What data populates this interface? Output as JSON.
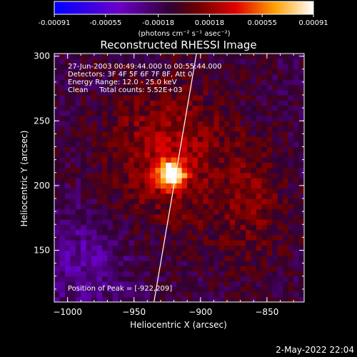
{
  "chart_data": {
    "type": "heatmap",
    "title": "Reconstructed RHESSI Image",
    "xlabel": "Heliocentric X (arcsec)",
    "ylabel": "Heliocentric Y (arcsec)",
    "xlim": [
      -1010,
      -822
    ],
    "ylim": [
      110,
      302
    ],
    "x_ticks": [
      -1000,
      -950,
      -900,
      -850
    ],
    "y_ticks": [
      150,
      200,
      250,
      300
    ],
    "x_tick_labels": [
      "−1000",
      "−950",
      "−900",
      "−850"
    ],
    "y_tick_labels": [
      "150",
      "200",
      "250",
      "300"
    ],
    "colorbar": {
      "range": [
        -0.00091,
        0.00091
      ],
      "ticks": [
        -0.00091,
        -0.00055,
        -0.00018,
        0.00018,
        0.00055,
        0.00091
      ],
      "tick_labels": [
        "-0.00091",
        "-0.00055",
        "-0.00018",
        "0.00018",
        "0.00055",
        "0.00091"
      ],
      "unit_label": "(photons cm⁻² s⁻¹ asec⁻²)"
    },
    "annotations": [
      "27-Jun-2003 00:49:44.000 to 00:55:44.000",
      "Detectors: 3F 4F 5F 6F 7F 8F, Att 0",
      "Energy Range: 12.0 - 25.0 keV",
      "Clean     Total counts: 5.52E+03"
    ],
    "peak_label": "Position of Peak = [-922,209]",
    "peak": {
      "x": -922,
      "y": 209
    },
    "limb_line": [
      [
        -935,
        110
      ],
      [
        -920,
        200
      ],
      [
        -903,
        302
      ]
    ],
    "date_stamp": "2-May-2022 22:04"
  }
}
